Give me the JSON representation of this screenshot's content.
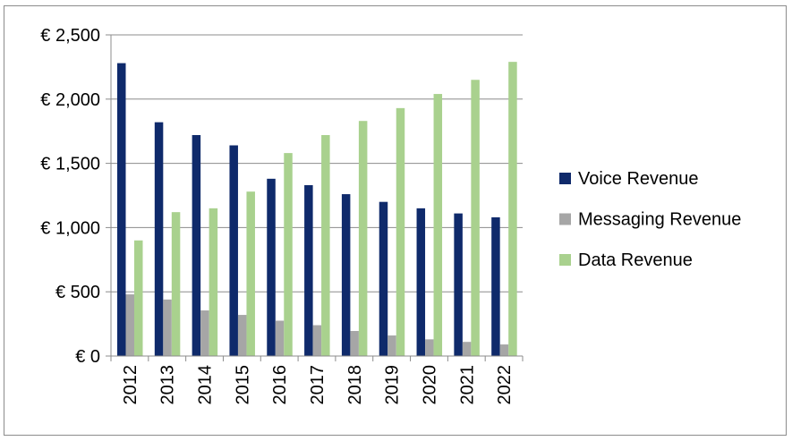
{
  "chart_data": {
    "type": "bar",
    "title": "",
    "xlabel": "",
    "ylabel": "",
    "categories": [
      "2012",
      "2013",
      "2014",
      "2015",
      "2016",
      "2017",
      "2018",
      "2019",
      "2020",
      "2021",
      "2022"
    ],
    "series": [
      {
        "name": "Voice Revenue",
        "color": "#0f2a6b",
        "values": [
          2280,
          1820,
          1720,
          1640,
          1380,
          1330,
          1260,
          1200,
          1150,
          1110,
          1080
        ]
      },
      {
        "name": "Messaging Revenue",
        "color": "#a6a6a6",
        "values": [
          480,
          440,
          355,
          320,
          275,
          240,
          195,
          160,
          130,
          110,
          90
        ]
      },
      {
        "name": "Data Revenue",
        "color": "#a9d18e",
        "values": [
          900,
          1120,
          1150,
          1280,
          1580,
          1720,
          1830,
          1930,
          2040,
          2150,
          2290
        ]
      }
    ],
    "ylim": [
      0,
      2500
    ],
    "yticks": [
      0,
      500,
      1000,
      1500,
      2000,
      2500
    ],
    "ytick_labels": [
      "€ 0",
      "€ 500",
      "€ 1,000",
      "€ 1,500",
      "€ 2,000",
      "€ 2,500"
    ],
    "grid": true,
    "legend_position": "right"
  }
}
